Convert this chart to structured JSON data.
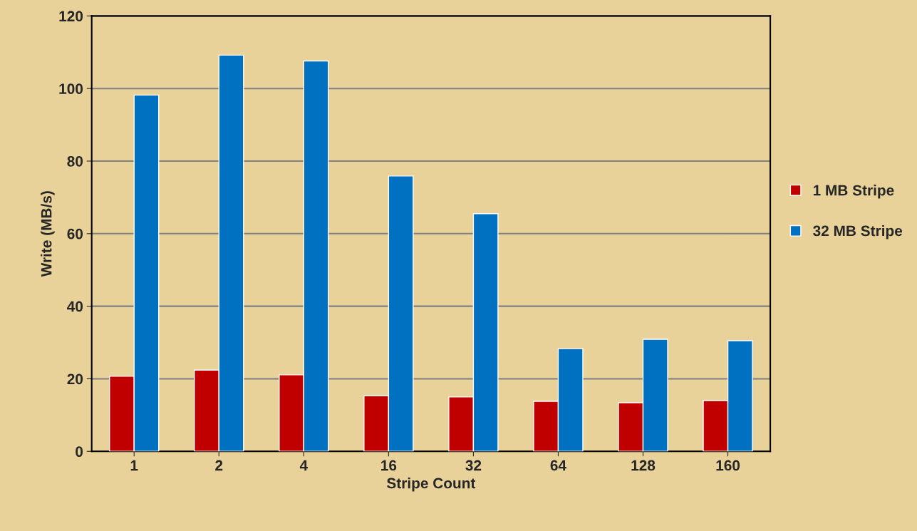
{
  "chart_data": {
    "type": "bar",
    "xlabel": "Stripe Count",
    "ylabel": "Write (MB/s)",
    "categories": [
      "1",
      "2",
      "4",
      "16",
      "32",
      "64",
      "128",
      "160"
    ],
    "series": [
      {
        "name": "1 MB Stripe",
        "color": "#c00000",
        "values": [
          20.7,
          22.4,
          21.1,
          15.3,
          15.0,
          13.8,
          13.4,
          14.0
        ]
      },
      {
        "name": "32 MB Stripe",
        "color": "#0070c0",
        "values": [
          98.2,
          109.2,
          107.6,
          75.9,
          65.5,
          28.3,
          30.9,
          30.5
        ]
      }
    ],
    "ylim": [
      0,
      120
    ],
    "yticks": [
      0,
      20,
      40,
      60,
      80,
      100,
      120
    ],
    "grid": "y",
    "legend": "right"
  }
}
